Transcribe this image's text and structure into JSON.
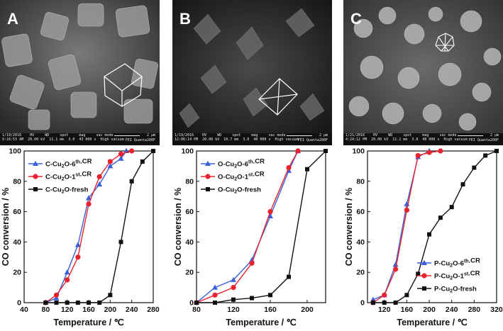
{
  "panels": [
    {
      "letter": "A",
      "info_line1": "1/19/2016    HV     WD     spot     mag     vac mode",
      "info_line2": "9:16:53 AM  20.00 kV  11.1 mm  3.0  43 000 x  High vacuum",
      "scale": "2 μm",
      "vendor": "FEI Quanta200F"
    },
    {
      "letter": "B",
      "info_line1": "1/19/2016    HV     WD     spot     mag     vac mode",
      "info_line2": "12:06:14 PM  20.00 kV  10.7 mm  3.0  40 000 x  High vacuum",
      "scale": "2 μm",
      "vendor": "FEI Quanta200F"
    },
    {
      "letter": "C",
      "info_line1": "1/21/2016    HV     WD     spot     mag     vac mode",
      "info_line2": "4:24:12 PM  20.00 kV  11.2 mm  3.0  40 000 x  High vacuum",
      "scale": "2 μm",
      "vendor": "FEI Quanta200F"
    }
  ],
  "chart_data": [
    {
      "type": "line",
      "xlabel": "Temperature / ℃",
      "ylabel": "CO conversion / %",
      "xlim": [
        40,
        280
      ],
      "xticks": [
        40,
        80,
        120,
        160,
        200,
        240,
        280
      ],
      "ylim": [
        0,
        100
      ],
      "yticks": [
        0,
        20,
        40,
        60,
        80,
        100
      ],
      "legend_position": "top-left",
      "series": [
        {
          "name": "C-Cu2O-6th.CR",
          "color": "#3a5fd8",
          "marker": "triangle",
          "x": [
            80,
            100,
            120,
            140,
            160,
            180,
            200,
            220,
            230
          ],
          "y": [
            0,
            3,
            20,
            38,
            69,
            78,
            90,
            95,
            100
          ]
        },
        {
          "name": "C-Cu2O-1st.CR",
          "color": "#e8232e",
          "marker": "circle",
          "x": [
            80,
            100,
            120,
            140,
            160,
            180,
            200,
            220,
            240
          ],
          "y": [
            0,
            5,
            15,
            30,
            65,
            83,
            93,
            98,
            100
          ]
        },
        {
          "name": "C-Cu2O-fresh",
          "color": "#111111",
          "marker": "square",
          "x": [
            80,
            100,
            120,
            140,
            160,
            180,
            200,
            220,
            240,
            260,
            280
          ],
          "y": [
            0,
            0,
            0,
            0,
            0,
            0,
            5,
            40,
            80,
            93,
            100
          ]
        }
      ]
    },
    {
      "type": "line",
      "xlabel": "Temperature / ℃",
      "ylabel": "CO conversion / %",
      "xlim": [
        80,
        220
      ],
      "xticks": [
        80,
        120,
        160,
        200
      ],
      "ylim": [
        0,
        100
      ],
      "yticks": [
        0,
        20,
        40,
        60,
        80,
        100
      ],
      "legend_position": "top-left",
      "series": [
        {
          "name": "O-Cu2O-6th.CR",
          "color": "#3a5fd8",
          "marker": "triangle",
          "x": [
            80,
            100,
            120,
            140,
            160,
            180,
            190
          ],
          "y": [
            0,
            10,
            15,
            28,
            57,
            87,
            100
          ]
        },
        {
          "name": "O-Cu2O-1st.CR",
          "color": "#e8232e",
          "marker": "circle",
          "x": [
            80,
            100,
            120,
            140,
            160,
            180,
            190
          ],
          "y": [
            0,
            5,
            10,
            26,
            60,
            89,
            100
          ]
        },
        {
          "name": "O-Cu2O-fresh",
          "color": "#111111",
          "marker": "square",
          "x": [
            80,
            100,
            120,
            140,
            160,
            180,
            200,
            220
          ],
          "y": [
            0,
            0,
            2,
            3,
            5,
            17,
            88,
            100
          ]
        }
      ]
    },
    {
      "type": "line",
      "xlabel": "Temperature / ℃",
      "ylabel": "CO conversion / %",
      "xlim": [
        90,
        320
      ],
      "xticks": [
        120,
        160,
        200,
        240,
        280,
        320
      ],
      "ylim": [
        0,
        100
      ],
      "yticks": [
        0,
        20,
        40,
        60,
        80,
        100
      ],
      "legend_position": "bottom-right",
      "series": [
        {
          "name": "P-Cu2O-6th.CR",
          "color": "#3a5fd8",
          "marker": "triangle",
          "x": [
            100,
            120,
            140,
            160,
            180,
            200
          ],
          "y": [
            2,
            5,
            25,
            65,
            96,
            100
          ]
        },
        {
          "name": "P-Cu2O-1st.CR",
          "color": "#e8232e",
          "marker": "circle",
          "x": [
            100,
            120,
            140,
            160,
            180,
            200,
            220
          ],
          "y": [
            0,
            5,
            22,
            61,
            97,
            99,
            100
          ]
        },
        {
          "name": "P-Cu2O-fresh",
          "color": "#111111",
          "marker": "square",
          "x": [
            100,
            120,
            140,
            160,
            180,
            200,
            220,
            240,
            260,
            280,
            300,
            320
          ],
          "y": [
            0,
            0,
            0,
            5,
            19,
            45,
            56,
            63,
            78,
            89,
            97,
            100
          ]
        }
      ]
    }
  ]
}
